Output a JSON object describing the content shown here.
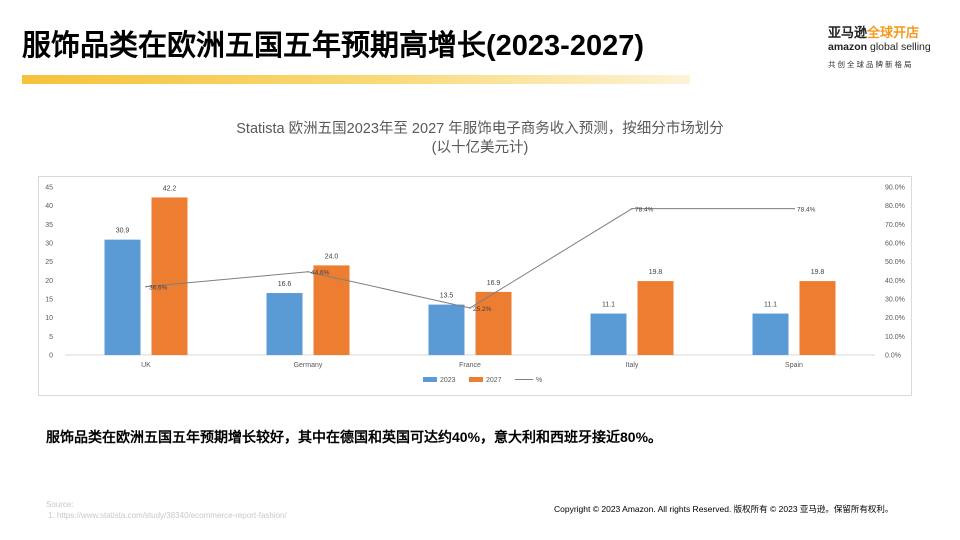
{
  "slide": {
    "title": "服饰品类在欧洲五国五年预期高增长(2023-2027)",
    "caption": "服饰品类在欧洲五国五年预期增长较好，其中在德国和英国可达约40%，意大利和西班牙接近80%。",
    "source_label": "Source:",
    "source_items": [
      "1.    https://www.statista.com/study/38340/ecommerce-report-fashion/"
    ],
    "copyright": "Copyright © 2023 Amazon.  All rights Reserved. 版权所有 © 2023 亚马逊。保留所有权利。"
  },
  "logo": {
    "cn_main": "亚马逊",
    "cn_accent": "全球开店",
    "en_main": "amazon",
    "en_rest": " global selling",
    "tagline": "共创全球品牌新格局",
    "accent_color": "#f39a1e"
  },
  "chart_data": {
    "type": "bar",
    "title": "Statista 欧洲五国2023年至 2027 年服饰电子商务收入预测，按细分市场划分",
    "subtitle": "(以十亿美元计)",
    "categories": [
      "UK",
      "Germany",
      "France",
      "Italy",
      "Spain"
    ],
    "series": [
      {
        "name": "2023",
        "type": "bar",
        "axis": "left",
        "color": "#5b9bd5",
        "values": [
          30.9,
          16.6,
          13.5,
          11.1,
          11.1
        ],
        "labels": [
          "30.9",
          "16.6",
          "13.5",
          "11.1",
          "11.1"
        ]
      },
      {
        "name": "2027",
        "type": "bar",
        "axis": "left",
        "color": "#ed7d31",
        "values": [
          42.2,
          24.0,
          16.9,
          19.8,
          19.8
        ],
        "labels": [
          "42.2",
          "24.0",
          "16.9",
          "19.8",
          "19.8"
        ]
      },
      {
        "name": "%",
        "type": "line",
        "axis": "right",
        "color": "#7f7f7f",
        "values": [
          36.6,
          44.6,
          25.2,
          78.4,
          78.4
        ],
        "labels": [
          "36.6%",
          "44.6%",
          "25.2%",
          "78.4%",
          "78.4%"
        ]
      }
    ],
    "ylim": [
      0,
      45
    ],
    "y_ticks": [
      "0",
      "5",
      "10",
      "15",
      "20",
      "25",
      "30",
      "35",
      "40",
      "45"
    ],
    "y2lim": [
      0,
      90
    ],
    "y2_ticks": [
      "0.0%",
      "10.0%",
      "20.0%",
      "30.0%",
      "40.0%",
      "50.0%",
      "60.0%",
      "70.0%",
      "80.0%",
      "90.0%"
    ],
    "grid": false,
    "legend_position": "bottom-center"
  }
}
